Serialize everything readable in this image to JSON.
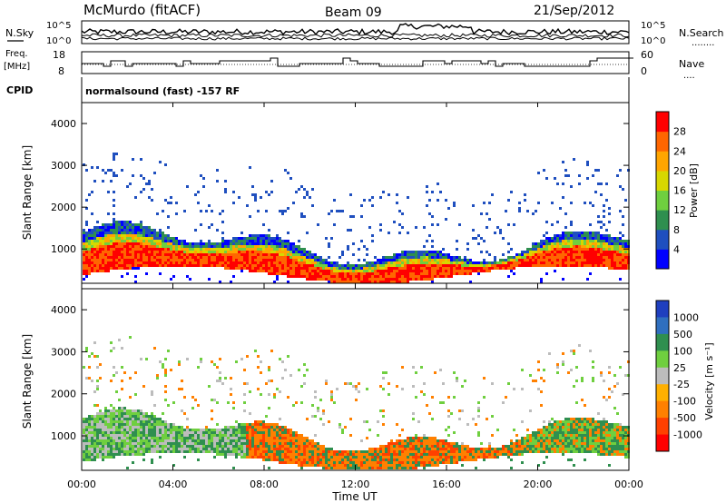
{
  "header": {
    "station": "McMurdo (fitACF)",
    "beam": "Beam 09",
    "date": "21/Sep/2012"
  },
  "noise_panel": {
    "left_label": "N.Sky",
    "right_label": "N.Search",
    "right_marker": "........",
    "left_ticks": [
      "10^5",
      "10^0"
    ],
    "right_ticks": [
      "10^5",
      "10^0"
    ]
  },
  "freq_panel": {
    "left_label_1": "Freq.",
    "left_label_2": "[MHz]",
    "left_ticks": [
      "18",
      "8"
    ],
    "right_label": "Nave",
    "right_marker": "....",
    "right_ticks": [
      "60",
      "0"
    ]
  },
  "cpid_panel": {
    "label": "CPID",
    "text": "normalsound (fast) -157 RF"
  },
  "chart_data": [
    {
      "type": "heatmap",
      "name": "power",
      "ylabel": "Slant Range [km]",
      "yticks": [
        "1000",
        "2000",
        "3000",
        "4000"
      ],
      "ylim": [
        180,
        4500
      ],
      "colorbar": {
        "label": "Power [dB]",
        "ticks": [
          "4",
          "8",
          "12",
          "16",
          "20",
          "24",
          "28"
        ],
        "colors": [
          "#0000ff",
          "#1f4fbf",
          "#2f8f4f",
          "#6fcf3f",
          "#d7d700",
          "#ffa500",
          "#ff6600",
          "#ff0000"
        ]
      }
    },
    {
      "type": "heatmap",
      "name": "velocity",
      "ylabel": "Slant Range [km]",
      "yticks": [
        "1000",
        "2000",
        "3000",
        "4000"
      ],
      "ylim": [
        180,
        4500
      ],
      "colorbar": {
        "label": "Velocity [m s⁻¹]",
        "ticks": [
          "1000",
          "500",
          "100",
          "25",
          "-25",
          "-100",
          "-500",
          "-1000"
        ],
        "colors": [
          "#1f3fbf",
          "#2f6fbf",
          "#2f8f4f",
          "#6fcf3f",
          "#bcbcbc",
          "#ffb000",
          "#ff8000",
          "#ff4000",
          "#ff0000"
        ]
      }
    }
  ],
  "x_axis": {
    "label": "Time UT",
    "ticks": [
      "00:00",
      "04:00",
      "08:00",
      "12:00",
      "16:00",
      "20:00",
      "00:00"
    ]
  }
}
